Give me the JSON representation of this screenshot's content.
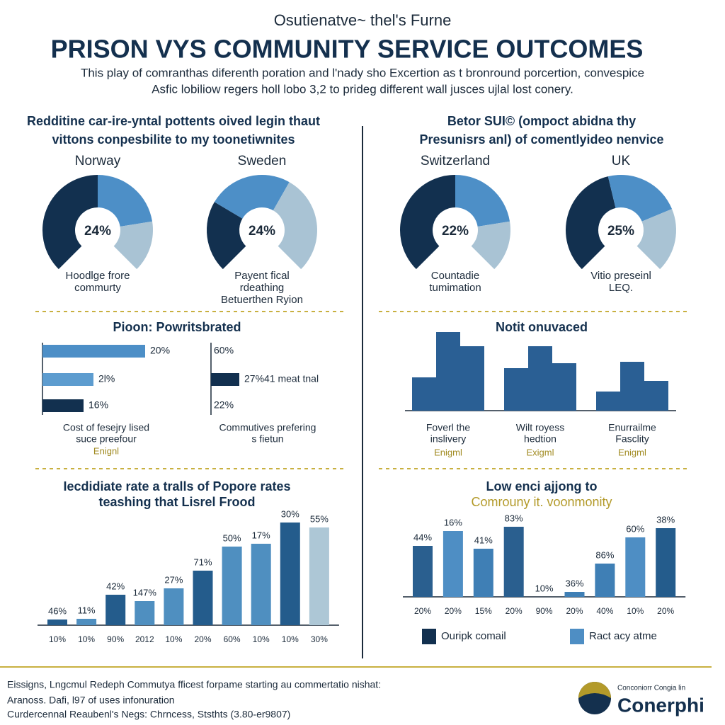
{
  "header": {
    "kicker": "Osutienatve~ thel's Furne",
    "title": "PRISON VYS COMMUNITY SERVICE OUTCOMES",
    "subtitle": [
      "This play of comranthas diferenth poration and l'nady sho Excertion as t bronround porcertion, convespice",
      "Asfic lobiliow regers holl lobo 3,2 to prideg different wall jusces ujlal lost conery."
    ]
  },
  "chart_data": [
    {
      "type": "gauge",
      "title": [
        "Redditine car-ire-yntal pottents oived legin thaut",
        "vittons conpesbilite to my toonetiwnites"
      ],
      "colors": [
        "#12304f",
        "#4d8fc7",
        "#a9c3d4"
      ],
      "gauges": [
        {
          "name": "Norway",
          "center_text": "24%",
          "values": [
            50,
            30,
            20
          ],
          "caption": [
            "Hoodlge frore",
            "commurty"
          ]
        },
        {
          "name": "Sweden",
          "center_text": "24%",
          "values": [
            28,
            33,
            39
          ],
          "caption": [
            "Payent fical",
            "rdeathing",
            "Betuerthen Ryion"
          ]
        }
      ]
    },
    {
      "type": "gauge",
      "title": [
        "Betor SUI© (ompoct abidna thy",
        "Presunisrs anl) of comentlyideo nenvice"
      ],
      "colors": [
        "#12304f",
        "#4d8fc7",
        "#a9c3d4"
      ],
      "gauges": [
        {
          "name": "Switzerland",
          "center_text": "22%",
          "values": [
            50,
            30,
            20
          ],
          "caption": [
            "Countadie",
            "tumimation"
          ]
        },
        {
          "name": "UK",
          "center_text": "25%",
          "values": [
            45,
            30,
            25
          ],
          "caption": [
            "Vitio preseinl",
            "LEQ."
          ]
        }
      ]
    },
    {
      "type": "hbar",
      "title": "Pioon: Powritsbrated",
      "xlim": [
        0,
        150
      ],
      "left": {
        "values": [
          145,
          72,
          58
        ],
        "labels": [
          "20%",
          "2l%",
          "16%"
        ],
        "colors": [
          "#4d8fc7",
          "#5d9ccf",
          "#12304f"
        ],
        "caption": [
          "Cost of fesejry lised",
          "suce preefour"
        ],
        "note": "Enignl"
      },
      "right": {
        "values": [
          null,
          40,
          null
        ],
        "labels": [
          "60%",
          "27%41 meat tnal",
          "22%"
        ],
        "colors": [
          null,
          "#12304f",
          null
        ],
        "caption": [
          "Commutives prefering",
          "s fietun"
        ]
      }
    },
    {
      "type": "grouped",
      "title": "Notit onuvaced",
      "ylim": [
        0,
        120
      ],
      "color": "#2a5f94",
      "groups": [
        {
          "values": [
            47,
            111,
            91
          ],
          "caption": [
            "Foverl the",
            "inslivery"
          ],
          "note": "Enigml"
        },
        {
          "values": [
            60,
            91,
            67
          ],
          "caption": [
            "Wilt royess",
            "hedtion"
          ],
          "note": "Exigml"
        },
        {
          "values": [
            27,
            69,
            42
          ],
          "caption": [
            "Enurrailme",
            "Fasclity"
          ],
          "note": "Enigml"
        }
      ]
    },
    {
      "type": "bar",
      "title": [
        "Iecdidiate rate a tralls of Popore rates",
        "teashing that Lisrel Frood"
      ],
      "ylim": [
        0,
        160
      ],
      "categories": [
        "10%",
        "10%",
        "90%",
        "2012",
        "10%",
        "20%",
        "60%",
        "10%",
        "10%",
        "30%"
      ],
      "values": [
        8,
        9,
        43,
        34,
        52,
        77,
        111,
        115,
        145,
        138
      ],
      "annotations": [
        "46%",
        "11%",
        "42%",
        "147%",
        "27%",
        "71%",
        "50%",
        "17%",
        "30%",
        "55%"
      ],
      "colors": [
        "#245c8c",
        "#4f8fc0",
        "#245c8c",
        "#4f8fc0",
        "#4f8fc0",
        "#245c8c",
        "#4f8fc0",
        "#4f8fc0",
        "#245c8c",
        "#adc7d6"
      ]
    },
    {
      "type": "bar",
      "title": [
        "Low enci ajjong to",
        "Comrouny it. voonmonity"
      ],
      "ylim": [
        0,
        120
      ],
      "categories": [
        "20%",
        "20%",
        "15%",
        "20%",
        "90%",
        "20%",
        "40%",
        "10%",
        "20%"
      ],
      "values": [
        72,
        93,
        68,
        99,
        0,
        7,
        47,
        84,
        97
      ],
      "annotations": [
        "44%",
        "16%",
        "41%",
        "83%",
        "10%",
        "36%",
        "86%",
        "60%",
        "38%"
      ],
      "colors": [
        "#2a5f8f",
        "#4e8ec4",
        "#3f7fb5",
        "#2a5f8f",
        "#2a5f8f",
        "#3f7fb5",
        "#3f7fb5",
        "#4e8ec4",
        "#245c8c"
      ],
      "legend": [
        {
          "name": "Ouripk comail",
          "color": "#12304f"
        },
        {
          "name": "Ract acy atme",
          "color": "#4e8ec4"
        }
      ]
    }
  ],
  "footer": {
    "lines": [
      "Eissigns, Lngcmul Redeph Commutya fficest forpame starting au commertatio nishat:",
      "Aranoss. Dafi, l97 of uses infonuration",
      "Curdercennal Reaubenl's Negs: Chrncess, Ststhts (3.80-er9807)"
    ],
    "logo": {
      "small": "Conconiorr Congia lin",
      "name": "Conerphi"
    }
  }
}
